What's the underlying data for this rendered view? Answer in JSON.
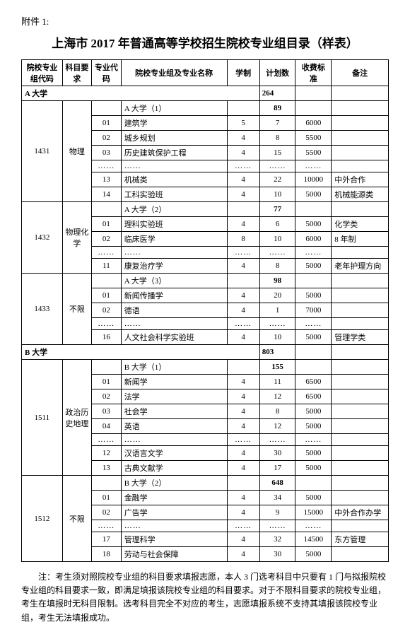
{
  "attachment": "附件 1:",
  "title": "上海市 2017 年普通高等学校招生院校专业组目录（样表）",
  "headers": {
    "col1": "院校专业组代码",
    "col2": "科目要求",
    "col3": "专业代码",
    "col4": "院校专业组及专业名称",
    "col5": "学制",
    "col6": "计划数",
    "col7": "收费标准",
    "col8": "备注"
  },
  "uniA": {
    "section_name": "A 大学",
    "section_total": "264",
    "g1": {
      "code": "1431",
      "subject": "物理",
      "group_name": "A 大学（1）",
      "group_total": "89",
      "r1": {
        "code": "01",
        "name": "建筑学",
        "dur": "5",
        "plan": "7",
        "fee": "6000",
        "remark": ""
      },
      "r2": {
        "code": "02",
        "name": "城乡规划",
        "dur": "4",
        "plan": "8",
        "fee": "5500",
        "remark": ""
      },
      "r3": {
        "code": "03",
        "name": "历史建筑保护工程",
        "dur": "4",
        "plan": "15",
        "fee": "5500",
        "remark": ""
      },
      "dots": {
        "code": "……",
        "name": "……",
        "dur": "……",
        "plan": "……",
        "fee": "……",
        "remark": ""
      },
      "r13": {
        "code": "13",
        "name": "机械类",
        "dur": "4",
        "plan": "22",
        "fee": "10000",
        "remark": "中外合作"
      },
      "r14": {
        "code": "14",
        "name": "工科实验班",
        "dur": "4",
        "plan": "10",
        "fee": "5000",
        "remark": "机械能源类"
      }
    },
    "g2": {
      "code": "1432",
      "subject": "物理化学",
      "group_name": "A 大学（2）",
      "group_total": "77",
      "r1": {
        "code": "01",
        "name": "理科实验班",
        "dur": "4",
        "plan": "6",
        "fee": "5000",
        "remark": "化学类"
      },
      "r2": {
        "code": "02",
        "name": "临床医学",
        "dur": "8",
        "plan": "10",
        "fee": "6000",
        "remark": "8 年制"
      },
      "dots": {
        "code": "……",
        "name": "……",
        "dur": "……",
        "plan": "……",
        "fee": "……",
        "remark": ""
      },
      "r11": {
        "code": "11",
        "name": "康复治疗学",
        "dur": "4",
        "plan": "8",
        "fee": "5000",
        "remark": "老年护理方向"
      }
    },
    "g3": {
      "code": "1433",
      "subject": "不限",
      "group_name": "A 大学（3）",
      "group_total": "98",
      "r1": {
        "code": "01",
        "name": "新闻传播学",
        "dur": "4",
        "plan": "20",
        "fee": "5000",
        "remark": ""
      },
      "r2": {
        "code": "02",
        "name": "德语",
        "dur": "4",
        "plan": "1",
        "fee": "7000",
        "remark": ""
      },
      "dots": {
        "code": "……",
        "name": "……",
        "dur": "……",
        "plan": "……",
        "fee": "……",
        "remark": ""
      },
      "r16": {
        "code": "16",
        "name": "人文社会科学实验班",
        "dur": "4",
        "plan": "10",
        "fee": "5000",
        "remark": "管理学类"
      }
    }
  },
  "uniB": {
    "section_name": "B 大学",
    "section_total": "803",
    "g1": {
      "code": "1511",
      "subject": "政治历史地理",
      "group_name": "B 大学（1）",
      "group_total": "155",
      "r1": {
        "code": "01",
        "name": "新闻学",
        "dur": "4",
        "plan": "11",
        "fee": "6500",
        "remark": ""
      },
      "r2": {
        "code": "02",
        "name": "法学",
        "dur": "4",
        "plan": "12",
        "fee": "6500",
        "remark": ""
      },
      "r3": {
        "code": "03",
        "name": "社会学",
        "dur": "4",
        "plan": "8",
        "fee": "5000",
        "remark": ""
      },
      "r4": {
        "code": "04",
        "name": "英语",
        "dur": "4",
        "plan": "12",
        "fee": "5000",
        "remark": ""
      },
      "dots": {
        "code": "……",
        "name": "……",
        "dur": "……",
        "plan": "……",
        "fee": "……",
        "remark": ""
      },
      "r12": {
        "code": "12",
        "name": "汉语言文学",
        "dur": "4",
        "plan": "30",
        "fee": "5000",
        "remark": ""
      },
      "r13": {
        "code": "13",
        "name": "古典文献学",
        "dur": "4",
        "plan": "17",
        "fee": "5000",
        "remark": ""
      }
    },
    "g2": {
      "code": "1512",
      "subject": "不限",
      "group_name": "B 大学（2）",
      "group_total": "648",
      "r1": {
        "code": "01",
        "name": "金融学",
        "dur": "4",
        "plan": "34",
        "fee": "5000",
        "remark": ""
      },
      "r2": {
        "code": "02",
        "name": "广告学",
        "dur": "4",
        "plan": "9",
        "fee": "15000",
        "remark": "中外合作办学"
      },
      "dots": {
        "code": "……",
        "name": "……",
        "dur": "……",
        "plan": "……",
        "fee": "……",
        "remark": ""
      },
      "r17": {
        "code": "17",
        "name": "管理科学",
        "dur": "4",
        "plan": "32",
        "fee": "14500",
        "remark": "东方管理"
      },
      "r18": {
        "code": "18",
        "name": "劳动与社会保障",
        "dur": "4",
        "plan": "30",
        "fee": "5000",
        "remark": ""
      }
    }
  },
  "note": "注：考生须对照院校专业组的科目要求填报志愿，本人 3 门选考科目中只要有 1 门与拟报院校专业组的科目要求一致，即满足填报该院校专业组的科目要求。对于不限科目要求的院校专业组，考生在填报时无科目限制。选考科目完全不对应的考生，志愿填报系统不支持其填报该院校专业组，考生无法填报成功。"
}
